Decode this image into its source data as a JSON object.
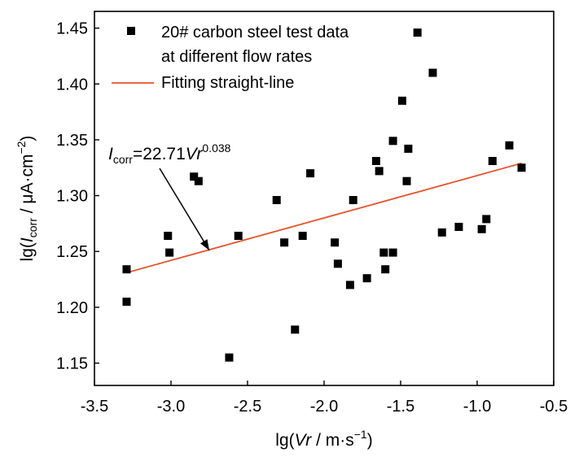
{
  "chart_data": {
    "type": "scatter",
    "xlabel": {
      "prefix": "lg(",
      "var": "Vr",
      "unit": " / m·s",
      "exp": "−1",
      "suffix": ")"
    },
    "ylabel": {
      "prefix": "lg(",
      "var": "I",
      "sub": "corr",
      "unit": " / μA·cm",
      "exp": "−2",
      "suffix": ")"
    },
    "xlim": [
      -3.5,
      -0.5
    ],
    "ylim": [
      1.13,
      1.465
    ],
    "xticks": [
      -3.5,
      -3.0,
      -2.5,
      -2.0,
      -1.5,
      -1.0,
      -0.5
    ],
    "xtick_labels": [
      "-3.5",
      "-3.0",
      "-2.5",
      "-2.0",
      "-1.5",
      "-1.0",
      "-0.5"
    ],
    "yticks": [
      1.15,
      1.2,
      1.25,
      1.3,
      1.35,
      1.4,
      1.45
    ],
    "ytick_labels": [
      "1.15",
      "1.20",
      "1.25",
      "1.30",
      "1.35",
      "1.40",
      "1.45"
    ],
    "grid": false,
    "legend_position": "top-left",
    "series": [
      {
        "name": "20# carbon steel test data at different flow rates",
        "legend_lines": [
          "20# carbon steel test data",
          "at different flow rates"
        ],
        "marker": "square",
        "color": "#000000",
        "points": [
          [
            -3.29,
            1.205
          ],
          [
            -3.29,
            1.234
          ],
          [
            -3.02,
            1.264
          ],
          [
            -3.01,
            1.249
          ],
          [
            -2.85,
            1.317
          ],
          [
            -2.82,
            1.313
          ],
          [
            -2.62,
            1.155
          ],
          [
            -2.56,
            1.264
          ],
          [
            -2.31,
            1.296
          ],
          [
            -2.26,
            1.258
          ],
          [
            -2.19,
            1.18
          ],
          [
            -2.14,
            1.264
          ],
          [
            -2.09,
            1.32
          ],
          [
            -1.93,
            1.258
          ],
          [
            -1.91,
            1.239
          ],
          [
            -1.83,
            1.22
          ],
          [
            -1.81,
            1.296
          ],
          [
            -1.72,
            1.226
          ],
          [
            -1.66,
            1.331
          ],
          [
            -1.64,
            1.322
          ],
          [
            -1.61,
            1.249
          ],
          [
            -1.6,
            1.234
          ],
          [
            -1.55,
            1.349
          ],
          [
            -1.55,
            1.249
          ],
          [
            -1.49,
            1.385
          ],
          [
            -1.46,
            1.313
          ],
          [
            -1.45,
            1.342
          ],
          [
            -1.39,
            1.446
          ],
          [
            -1.29,
            1.41
          ],
          [
            -1.23,
            1.267
          ],
          [
            -1.12,
            1.272
          ],
          [
            -0.97,
            1.27
          ],
          [
            -0.94,
            1.279
          ],
          [
            -0.9,
            1.331
          ],
          [
            -0.79,
            1.345
          ],
          [
            -0.71,
            1.325
          ]
        ]
      },
      {
        "name": "Fitting straight-line",
        "legend_lines": [
          "Fitting straight-line"
        ],
        "type": "line",
        "color": "#e8502a",
        "points": [
          [
            -3.29,
            1.231
          ],
          [
            -0.71,
            1.329
          ]
        ]
      }
    ],
    "annotation": {
      "var": "I",
      "sub": "corr",
      "eq": "=22.71",
      "var2": "Vr",
      "exp": "0.038",
      "arrow_to": [
        -2.75,
        1.251
      ]
    }
  }
}
